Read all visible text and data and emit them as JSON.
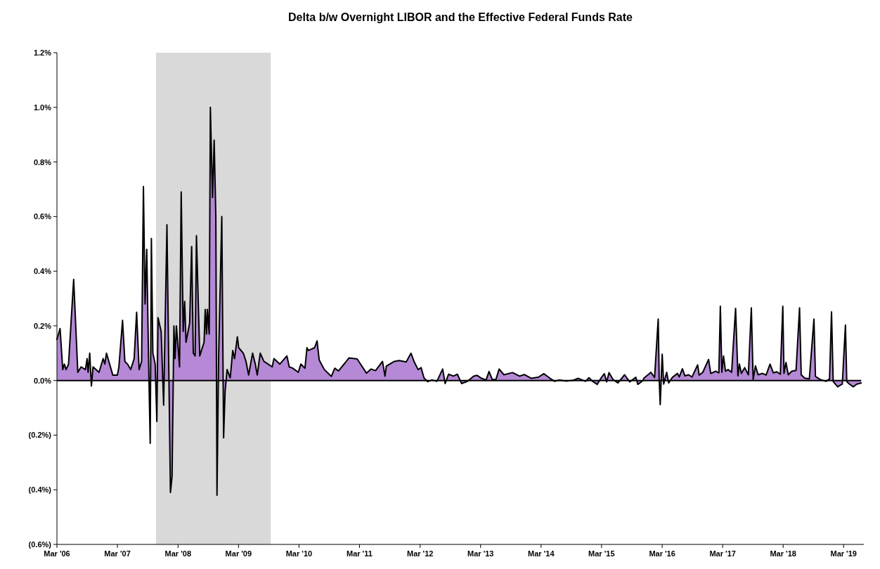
{
  "chart_data": {
    "type": "area",
    "title": "Delta b/w Overnight LIBOR and the Effective Federal Funds Rate",
    "xlim": [
      "2006-03-01",
      "2019-07-01"
    ],
    "xticks": [
      {
        "value": "2006-03-01",
        "label": "Mar '06"
      },
      {
        "value": "2007-03-01",
        "label": "Mar '07"
      },
      {
        "value": "2008-03-01",
        "label": "Mar '08"
      },
      {
        "value": "2009-03-01",
        "label": "Mar '09"
      },
      {
        "value": "2010-03-01",
        "label": "Mar '10"
      },
      {
        "value": "2011-03-01",
        "label": "Mar '11"
      },
      {
        "value": "2012-03-01",
        "label": "Mar '12"
      },
      {
        "value": "2013-03-01",
        "label": "Mar '13"
      },
      {
        "value": "2014-03-01",
        "label": "Mar '14"
      },
      {
        "value": "2015-03-01",
        "label": "Mar '15"
      },
      {
        "value": "2016-03-01",
        "label": "Mar '16"
      },
      {
        "value": "2017-03-01",
        "label": "Mar '17"
      },
      {
        "value": "2018-03-01",
        "label": "Mar '18"
      },
      {
        "value": "2019-03-01",
        "label": "Mar '19"
      }
    ],
    "ylim": [
      -0.6,
      1.2
    ],
    "yticks": [
      {
        "value": -0.6,
        "label": "(0.6%)"
      },
      {
        "value": -0.4,
        "label": "(0.4%)"
      },
      {
        "value": -0.2,
        "label": "(0.2%)"
      },
      {
        "value": 0,
        "label": "0.0%"
      },
      {
        "value": 0.2,
        "label": "0.2%"
      },
      {
        "value": 0.4,
        "label": "0.4%"
      },
      {
        "value": 0.6,
        "label": "0.6%"
      },
      {
        "value": 0.8,
        "label": "0.8%"
      },
      {
        "value": 1.0,
        "label": "1.0%"
      },
      {
        "value": 1.2,
        "label": "1.2%"
      }
    ],
    "bands": [
      {
        "axis": "x",
        "from": "2007-10-20",
        "to": "2009-09-12",
        "label": null,
        "color": "#d9d9d9"
      }
    ],
    "series": [
      {
        "color": "#b589d6",
        "x": [
          "2006-03-01",
          "2006-03-20",
          "2006-04-05",
          "2006-04-15",
          "2006-04-25",
          "2006-05-10",
          "2006-06-10",
          "2006-07-05",
          "2006-07-25",
          "2006-08-20",
          "2006-08-30",
          "2006-09-05",
          "2006-09-15",
          "2006-09-25",
          "2006-10-05",
          "2006-11-10",
          "2006-12-05",
          "2006-12-15",
          "2006-12-25",
          "2007-02-01",
          "2007-03-01",
          "2007-03-10",
          "2007-04-01",
          "2007-04-15",
          "2007-05-01",
          "2007-05-20",
          "2007-06-10",
          "2007-06-25",
          "2007-07-10",
          "2007-07-25",
          "2007-08-05",
          "2007-08-15",
          "2007-08-25",
          "2007-09-05",
          "2007-09-15",
          "2007-09-22",
          "2007-10-01",
          "2007-10-15",
          "2007-10-25",
          "2007-11-01",
          "2007-11-20",
          "2007-12-05",
          "2007-12-25",
          "2008-01-05",
          "2008-01-15",
          "2008-01-25",
          "2008-02-05",
          "2008-02-12",
          "2008-02-20",
          "2008-03-10",
          "2008-03-20",
          "2008-04-01",
          "2008-04-10",
          "2008-04-18",
          "2008-05-10",
          "2008-05-22",
          "2008-06-01",
          "2008-06-12",
          "2008-06-20",
          "2008-07-10",
          "2008-08-05",
          "2008-08-12",
          "2008-08-20",
          "2008-08-25",
          "2008-09-05",
          "2008-09-12",
          "2008-09-25",
          "2008-10-05",
          "2008-10-15",
          "2008-10-22",
          "2008-11-01",
          "2008-11-20",
          "2008-12-01",
          "2008-12-10",
          "2008-12-22",
          "2009-01-10",
          "2009-01-25",
          "2009-02-05",
          "2009-02-22",
          "2009-03-02",
          "2009-03-30",
          "2009-04-15",
          "2009-05-01",
          "2009-05-25",
          "2009-06-10",
          "2009-06-22",
          "2009-07-10",
          "2009-08-01",
          "2009-09-20",
          "2009-10-01",
          "2009-11-05",
          "2009-12-18",
          "2010-01-01",
          "2010-01-22",
          "2010-02-25",
          "2010-03-12",
          "2010-04-06",
          "2010-04-18",
          "2010-04-27",
          "2010-06-03",
          "2010-06-18",
          "2010-07-01",
          "2010-08-01",
          "2010-09-12",
          "2010-10-03",
          "2010-10-25",
          "2010-12-06",
          "2010-12-28",
          "2011-02-15",
          "2011-04-12",
          "2011-05-10",
          "2011-06-06",
          "2011-07-18",
          "2011-08-02",
          "2011-08-10",
          "2011-09-28",
          "2011-10-27",
          "2011-12-08",
          "2012-01-06",
          "2012-01-24",
          "2012-02-18",
          "2012-03-07",
          "2012-03-24",
          "2012-04-15",
          "2012-05-12",
          "2012-06-10",
          "2012-07-15",
          "2012-07-30",
          "2012-08-20",
          "2012-09-18",
          "2012-10-12",
          "2012-11-06",
          "2012-12-12",
          "2013-01-18",
          "2013-02-08",
          "2013-03-06",
          "2013-04-03",
          "2013-04-21",
          "2013-05-10",
          "2013-06-01",
          "2013-06-21",
          "2013-07-20",
          "2013-09-10",
          "2013-10-22",
          "2013-11-20",
          "2014-01-01",
          "2014-02-12",
          "2014-03-18",
          "2014-04-24",
          "2014-05-22",
          "2014-06-20",
          "2014-08-01",
          "2014-09-12",
          "2014-10-12",
          "2014-11-24",
          "2014-12-15",
          "2015-01-06",
          "2015-02-03",
          "2015-03-01",
          "2015-03-18",
          "2015-04-01",
          "2015-04-15",
          "2015-05-10",
          "2015-06-08",
          "2015-07-18",
          "2015-08-18",
          "2015-09-24",
          "2015-10-06",
          "2015-11-05",
          "2015-11-12",
          "2015-12-24",
          "2016-01-15",
          "2016-02-06",
          "2016-02-12",
          "2016-02-18",
          "2016-03-01",
          "2016-03-10",
          "2016-03-28",
          "2016-04-09",
          "2016-05-01",
          "2016-06-01",
          "2016-06-12",
          "2016-07-01",
          "2016-07-16",
          "2016-08-07",
          "2016-08-28",
          "2016-10-01",
          "2016-10-10",
          "2016-11-01",
          "2016-12-06",
          "2016-12-19",
          "2017-01-18",
          "2017-02-06",
          "2017-02-15",
          "2017-02-24",
          "2017-03-06",
          "2017-03-18",
          "2017-04-03",
          "2017-04-24",
          "2017-05-18",
          "2017-06-01",
          "2017-06-10",
          "2017-06-22",
          "2017-07-12",
          "2017-08-03",
          "2017-08-21",
          "2017-09-01",
          "2017-09-15",
          "2017-10-01",
          "2017-10-28",
          "2017-11-18",
          "2017-12-12",
          "2018-01-01",
          "2018-01-22",
          "2018-02-12",
          "2018-02-27",
          "2018-03-06",
          "2018-03-18",
          "2018-04-01",
          "2018-04-22",
          "2018-05-18",
          "2018-06-08",
          "2018-06-18",
          "2018-07-09",
          "2018-08-06",
          "2018-09-03",
          "2018-09-12",
          "2018-10-10",
          "2018-11-15",
          "2018-12-06",
          "2018-12-18",
          "2018-12-28",
          "2019-01-24",
          "2019-02-21",
          "2019-03-12",
          "2019-03-20",
          "2019-04-05",
          "2019-04-28",
          "2019-05-20",
          "2019-06-15"
        ],
        "values": [
          0.15,
          0.19,
          0.04,
          0.06,
          0.04,
          0.06,
          0.37,
          0.03,
          0.05,
          0.04,
          0.08,
          0.03,
          0.1,
          -0.02,
          0.05,
          0.03,
          0.08,
          0.06,
          0.1,
          0.02,
          0.02,
          0.05,
          0.22,
          0.07,
          0.06,
          0.04,
          0.08,
          0.25,
          0.04,
          0.07,
          0.71,
          0.28,
          0.48,
          0.08,
          -0.23,
          0.52,
          0.1,
          0.06,
          -0.15,
          0.23,
          0.18,
          -0.09,
          0.57,
          0.05,
          -0.41,
          -0.35,
          0.2,
          0.08,
          0.2,
          0.05,
          0.69,
          0.18,
          0.29,
          0.14,
          0.21,
          0.49,
          0.1,
          0.09,
          0.53,
          0.09,
          0.14,
          0.26,
          0.17,
          0.26,
          0.17,
          1.0,
          0.67,
          0.88,
          0.6,
          -0.42,
          0.09,
          0.6,
          -0.21,
          -0.04,
          0.04,
          0.01,
          0.11,
          0.08,
          0.16,
          0.12,
          0.1,
          0.07,
          0.02,
          0.1,
          0.06,
          0.02,
          0.1,
          0.07,
          0.05,
          0.08,
          0.06,
          0.09,
          0.05,
          0.045,
          0.03,
          0.06,
          0.045,
          0.12,
          0.11,
          0.12,
          0.145,
          0.075,
          0.04,
          0.015,
          0.045,
          0.035,
          0.066,
          0.083,
          0.079,
          0.027,
          0.042,
          0.036,
          0.07,
          0.016,
          0.053,
          0.07,
          0.073,
          0.068,
          0.1,
          0.07,
          0.04,
          0.047,
          0.01,
          -0.004,
          0.002,
          -0.003,
          0.042,
          -0.011,
          0.023,
          0.016,
          0.023,
          -0.011,
          -0.003,
          0.016,
          0.019,
          0.008,
          0.002,
          0.033,
          0.004,
          0.003,
          0.042,
          0.021,
          0.029,
          0.016,
          0.022,
          0.008,
          0.012,
          0.025,
          0.008,
          -0.003,
          0.002,
          -0.002,
          0.001,
          0.008,
          -0.003,
          0.01,
          -0.003,
          -0.014,
          0.012,
          0.025,
          -0.005,
          0.029,
          0.003,
          -0.009,
          0.021,
          -0.005,
          0.012,
          -0.014,
          -0.001,
          0.009,
          0.03,
          0.011,
          0.225,
          0.004,
          -0.088,
          0.096,
          -0.013,
          0.03,
          -0.009,
          0.011,
          0.026,
          0.013,
          0.043,
          0.017,
          0.021,
          0.013,
          0.057,
          0.02,
          0.03,
          0.077,
          0.026,
          0.034,
          0.028,
          0.272,
          0.03,
          0.09,
          0.034,
          0.04,
          0.03,
          0.264,
          0.017,
          0.06,
          0.026,
          0.047,
          0.021,
          0.266,
          0.004,
          0.054,
          0.021,
          0.026,
          0.02,
          0.06,
          0.028,
          0.032,
          0.023,
          0.272,
          0.026,
          0.066,
          0.021,
          0.034,
          0.037,
          0.266,
          0.021,
          0.009,
          0.006,
          0.225,
          0.015,
          0.004,
          -0.003,
          0.006,
          0.251,
          -0.004,
          -0.023,
          -0.013,
          0.203,
          -0.004,
          -0.013,
          -0.023,
          -0.013,
          -0.009
        ]
      }
    ]
  }
}
